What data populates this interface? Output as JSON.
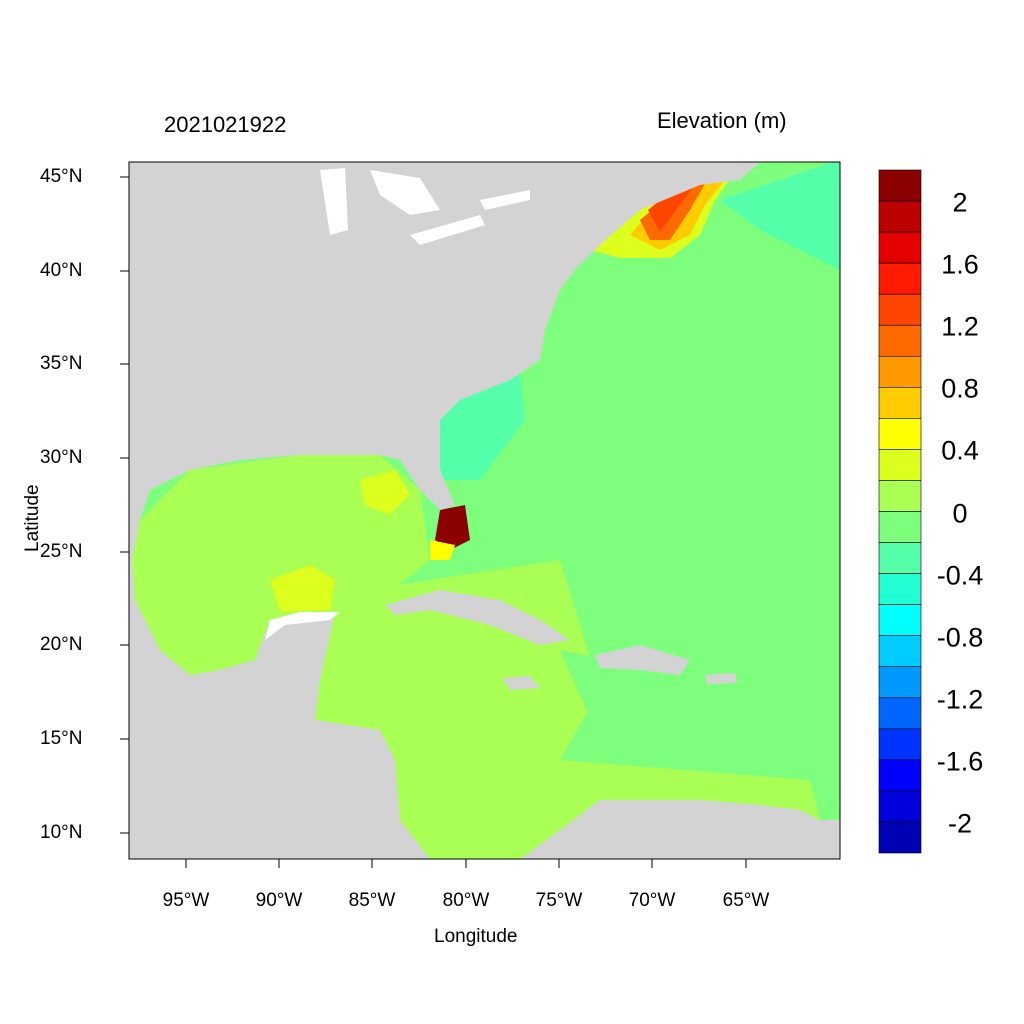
{
  "header": {
    "timestamp": "2021021922",
    "variable": "Elevation (m)"
  },
  "axes": {
    "xlabel": "Longitude",
    "ylabel": "Latitude",
    "xticks": [
      "95°W",
      "90°W",
      "85°W",
      "80°W",
      "75°W",
      "70°W",
      "65°W"
    ],
    "yticks": [
      "45°N",
      "40°N",
      "35°N",
      "30°N",
      "25°N",
      "20°N",
      "15°N",
      "10°N"
    ]
  },
  "colorbar": {
    "labels": [
      "2",
      "1.6",
      "1.2",
      "0.8",
      "0.4",
      "0",
      "-0.4",
      "-0.8",
      "-1.2",
      "-1.6",
      "-2"
    ],
    "colors": [
      "#8b0000",
      "#bb0000",
      "#e50000",
      "#ff1a00",
      "#ff4500",
      "#ff6a00",
      "#ff9900",
      "#ffcc00",
      "#ffff00",
      "#dcff1e",
      "#aaff55",
      "#7dff7d",
      "#55ffaa",
      "#22ffd4",
      "#00ffff",
      "#00ccff",
      "#0099ff",
      "#0066ff",
      "#0033ff",
      "#0000ff",
      "#0000dd",
      "#0000b4"
    ]
  },
  "map_colors": {
    "land": "#d3d3d3",
    "lakes": "#ffffff",
    "ocean_neutral": "#7dff7d",
    "gulf_caribbean": "#aaff55",
    "slight_positive": "#dcff1e",
    "slight_negative": "#55ffaa",
    "surge_high": "#ff6a00",
    "surge_extreme": "#8b0000"
  }
}
